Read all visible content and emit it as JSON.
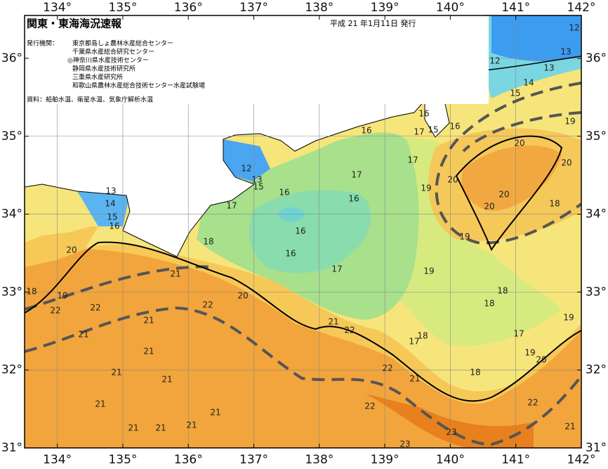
{
  "header": {
    "title": "関東・東海海況速報",
    "date": "平成 21 年1月11日 発行",
    "issuer_label": "発行機関：",
    "issuers": [
      "東京都島しょ農林水産総合センター",
      "千葉県水産総合研究センター",
      "◎神奈川県水産技術センター",
      "静岡県水産技術研究所",
      "三重県水産研究所",
      "和歌山県農林水産総合技術センター水産試験場"
    ],
    "source": "資料：船舶水温、衛星水温、気象庁解析水温"
  },
  "map": {
    "lonlim": [
      133.5,
      142
    ],
    "latlim": [
      31,
      36.55
    ],
    "lonticks": [
      {
        "value": 134,
        "label": "134°"
      },
      {
        "value": 135,
        "label": "135°"
      },
      {
        "value": 136,
        "label": "136°"
      },
      {
        "value": 137,
        "label": "137°"
      },
      {
        "value": 138,
        "label": "138°"
      },
      {
        "value": 139,
        "label": "139°"
      },
      {
        "value": 140,
        "label": "140°"
      },
      {
        "value": 141,
        "label": "141°"
      },
      {
        "value": 142,
        "label": "142°"
      }
    ],
    "latticks": [
      {
        "value": 31,
        "label": "31°"
      },
      {
        "value": 32,
        "label": "32°"
      },
      {
        "value": 33,
        "label": "33°"
      },
      {
        "value": 34,
        "label": "34°"
      },
      {
        "value": 35,
        "label": "35°"
      },
      {
        "value": 36,
        "label": "36°"
      }
    ],
    "grid": true,
    "contour_labels": [
      12,
      13,
      12,
      13,
      14,
      15,
      16,
      16,
      17,
      15,
      16,
      19,
      20,
      17,
      20,
      17,
      20,
      12,
      13,
      15,
      16,
      19,
      20,
      16,
      17,
      20,
      18,
      13,
      14,
      15,
      16,
      16,
      19,
      18,
      16,
      20,
      17,
      19,
      21,
      20,
      18,
      18,
      19,
      22,
      22,
      22,
      18,
      19,
      21,
      21,
      22,
      21,
      17,
      18,
      17,
      21,
      19,
      20,
      21,
      22,
      21,
      18,
      21,
      21,
      22,
      22,
      21,
      21,
      21,
      21,
      23,
      21,
      23
    ]
  }
}
